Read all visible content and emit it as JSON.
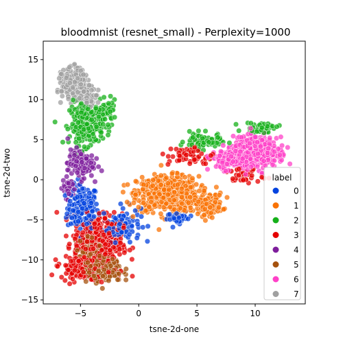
{
  "chart_data": {
    "type": "scatter",
    "title": "bloodmnist (resnet_small) - Perplexity=1000",
    "xlabel": "tsne-2d-one",
    "ylabel": "tsne-2d-two",
    "xlim": [
      -8.2,
      14.3
    ],
    "ylim": [
      -15.5,
      17.3
    ],
    "xticks": [
      -5,
      0,
      5,
      10
    ],
    "yticks": [
      -15,
      -10,
      -5,
      0,
      5,
      10,
      15
    ],
    "grid": false,
    "legend": {
      "title": "label",
      "position": "right"
    },
    "series": [
      {
        "name": "0",
        "color": "#0343df",
        "clusters": [
          {
            "center": [
              -4.8,
              -3.5
            ],
            "spread": [
              1.2,
              2.6
            ],
            "count": 160
          },
          {
            "center": [
              -1.5,
              -5.5
            ],
            "spread": [
              1.5,
              2.0
            ],
            "count": 90
          },
          {
            "center": [
              3.5,
              -4.8
            ],
            "spread": [
              1.0,
              0.6
            ],
            "count": 35
          }
        ]
      },
      {
        "name": "1",
        "color": "#f97306",
        "clusters": [
          {
            "center": [
              2.5,
              -1.8
            ],
            "spread": [
              2.4,
              2.0
            ],
            "count": 600
          },
          {
            "center": [
              6.0,
              -3.0
            ],
            "spread": [
              1.1,
              1.2
            ],
            "count": 120
          }
        ]
      },
      {
        "name": "2",
        "color": "#15b01a",
        "clusters": [
          {
            "center": [
              -4.5,
              7.0
            ],
            "spread": [
              1.3,
              2.4
            ],
            "count": 240
          },
          {
            "center": [
              -2.8,
              8.5
            ],
            "spread": [
              0.8,
              1.2
            ],
            "count": 60
          },
          {
            "center": [
              5.5,
              4.8
            ],
            "spread": [
              1.4,
              0.9
            ],
            "count": 80
          },
          {
            "center": [
              10.5,
              6.5
            ],
            "spread": [
              1.3,
              0.6
            ],
            "count": 45
          }
        ]
      },
      {
        "name": "3",
        "color": "#e50000",
        "clusters": [
          {
            "center": [
              -3.5,
              -8.0
            ],
            "spread": [
              1.9,
              3.4
            ],
            "count": 420
          },
          {
            "center": [
              -5.0,
              -11.0
            ],
            "spread": [
              1.6,
              1.2
            ],
            "count": 150
          },
          {
            "center": [
              4.5,
              3.0
            ],
            "spread": [
              1.8,
              1.2
            ],
            "count": 60
          },
          {
            "center": [
              9.0,
              0.5
            ],
            "spread": [
              1.6,
              0.9
            ],
            "count": 35
          }
        ]
      },
      {
        "name": "4",
        "color": "#7e1e9c",
        "clusters": [
          {
            "center": [
              -5.0,
              2.0
            ],
            "spread": [
              1.0,
              1.6
            ],
            "count": 130
          },
          {
            "center": [
              -6.0,
              -1.0
            ],
            "spread": [
              0.5,
              1.2
            ],
            "count": 40
          }
        ]
      },
      {
        "name": "5",
        "color": "#a5520e",
        "clusters": [
          {
            "center": [
              -3.2,
              -11.2
            ],
            "spread": [
              1.6,
              1.4
            ],
            "count": 200
          },
          {
            "center": [
              -4.0,
              -8.5
            ],
            "spread": [
              1.3,
              1.2
            ],
            "count": 60
          }
        ]
      },
      {
        "name": "6",
        "color": "#ff41c8",
        "clusters": [
          {
            "center": [
              10.0,
              3.5
            ],
            "spread": [
              1.7,
              1.6
            ],
            "count": 600
          },
          {
            "center": [
              7.5,
              2.5
            ],
            "spread": [
              1.2,
              1.1
            ],
            "count": 140
          }
        ]
      },
      {
        "name": "7",
        "color": "#a0a0a0",
        "clusters": [
          {
            "center": [
              -5.6,
              12.0
            ],
            "spread": [
              0.9,
              1.6
            ],
            "count": 330
          },
          {
            "center": [
              -4.5,
              10.5
            ],
            "spread": [
              0.8,
              1.1
            ],
            "count": 90
          }
        ]
      }
    ]
  }
}
